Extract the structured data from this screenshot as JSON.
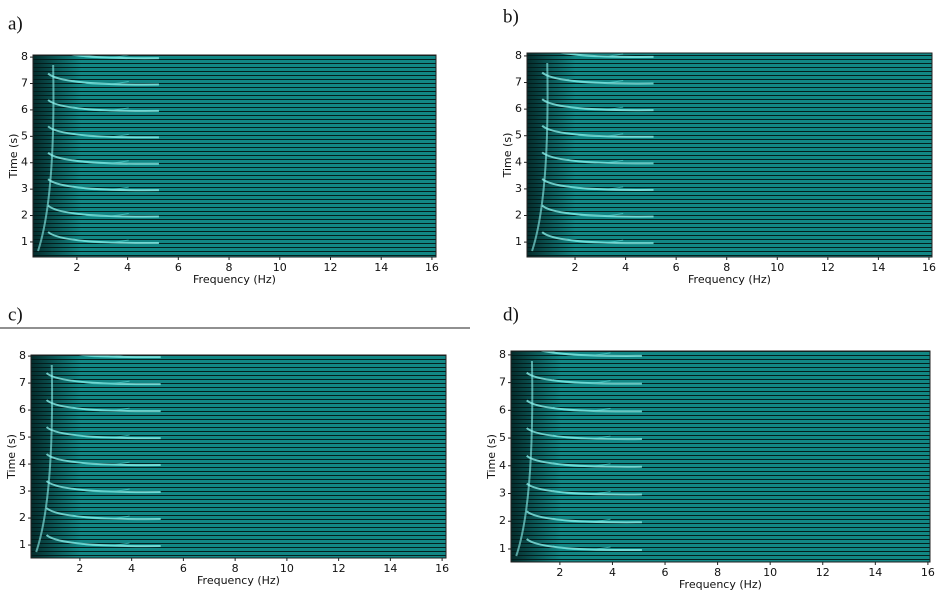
{
  "chart_data": [
    {
      "type": "heatmap",
      "title": "a)",
      "xlabel": "Frequency (Hz)",
      "ylabel": "Time (s)",
      "xlim": [
        0.27,
        16.16
      ],
      "ylim": [
        0.43,
        8.08
      ],
      "xticks": [
        2,
        4,
        6,
        8,
        10,
        12,
        14,
        16
      ],
      "yticks": [
        1,
        2,
        3,
        4,
        5,
        6,
        7,
        8
      ]
    },
    {
      "type": "heatmap",
      "title": "b)",
      "xlabel": "Frequency (Hz)",
      "ylabel": "Time (s)",
      "xlim": [
        0.1,
        16.12
      ],
      "ylim": [
        0.44,
        8.11
      ],
      "xticks": [
        2,
        4,
        6,
        8,
        10,
        12,
        14,
        16
      ],
      "yticks": [
        1,
        2,
        3,
        4,
        5,
        6,
        7,
        8
      ]
    },
    {
      "type": "heatmap",
      "title": "c)",
      "xlabel": "Frequency (Hz)",
      "ylabel": "Time (s)",
      "xlim": [
        0.11,
        16.15
      ],
      "ylim": [
        0.52,
        8.04
      ],
      "xticks": [
        2,
        4,
        6,
        8,
        10,
        12,
        14,
        16
      ],
      "yticks": [
        1,
        2,
        3,
        4,
        5,
        6,
        7,
        8
      ]
    },
    {
      "type": "heatmap",
      "title": "d)",
      "xlabel": "Frequency (Hz)",
      "ylabel": "Time (s)",
      "xlim": [
        0.14,
        16.08
      ],
      "ylim": [
        0.53,
        8.14
      ],
      "xticks": [
        2,
        4,
        6,
        8,
        10,
        12,
        14,
        16
      ],
      "yticks": [
        1,
        2,
        3,
        4,
        5,
        6,
        7,
        8
      ]
    }
  ]
}
